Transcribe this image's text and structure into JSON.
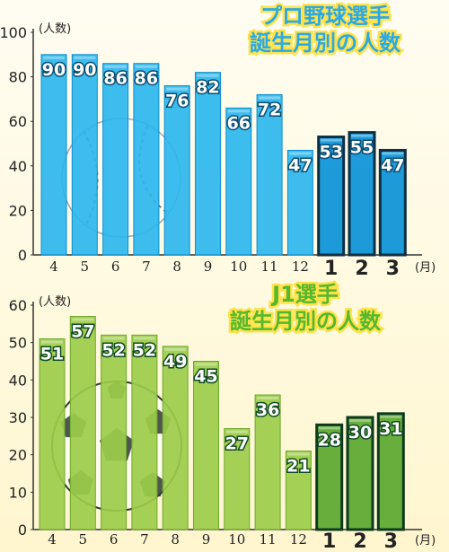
{
  "chart_data": [
    {
      "type": "bar",
      "title_lines": [
        "プロ野球選手",
        "誕生月別の人数"
      ],
      "unit_label": "(人数)",
      "month_unit": "(月)",
      "categories": [
        "4",
        "5",
        "6",
        "7",
        "8",
        "9",
        "10",
        "11",
        "12",
        "1",
        "2",
        "3"
      ],
      "values": [
        90,
        90,
        86,
        86,
        76,
        82,
        66,
        72,
        47,
        53,
        55,
        47
      ],
      "highlight_from_index": 9,
      "ylim": [
        0,
        100
      ],
      "yticks": [
        "0",
        "20",
        "40",
        "60",
        "80",
        "100"
      ],
      "colors": {
        "bar": "#2cb6ee",
        "bar_dark": "#0a8fd0",
        "bar_hl": "#0a93d8",
        "hl_border": "#0b2f44",
        "label_fill": "#2fb4ea"
      }
    },
    {
      "type": "bar",
      "title_lines": [
        "J1選手",
        "誕生月別の人数"
      ],
      "unit_label": "(人数)",
      "month_unit": "(月)",
      "categories": [
        "4",
        "5",
        "6",
        "7",
        "8",
        "9",
        "10",
        "11",
        "12",
        "1",
        "2",
        "3"
      ],
      "values": [
        51,
        57,
        52,
        52,
        49,
        45,
        27,
        36,
        21,
        28,
        30,
        31
      ],
      "highlight_from_index": 9,
      "ylim": [
        0,
        60
      ],
      "yticks": [
        "0",
        "10",
        "20",
        "30",
        "40",
        "50",
        "60"
      ],
      "colors": {
        "bar": "#9ccc4a",
        "bar_dark": "#6ea82c",
        "bar_hl": "#5aa72f",
        "hl_border": "#0d3a1c",
        "label_fill": "#1f8a3f"
      }
    }
  ]
}
